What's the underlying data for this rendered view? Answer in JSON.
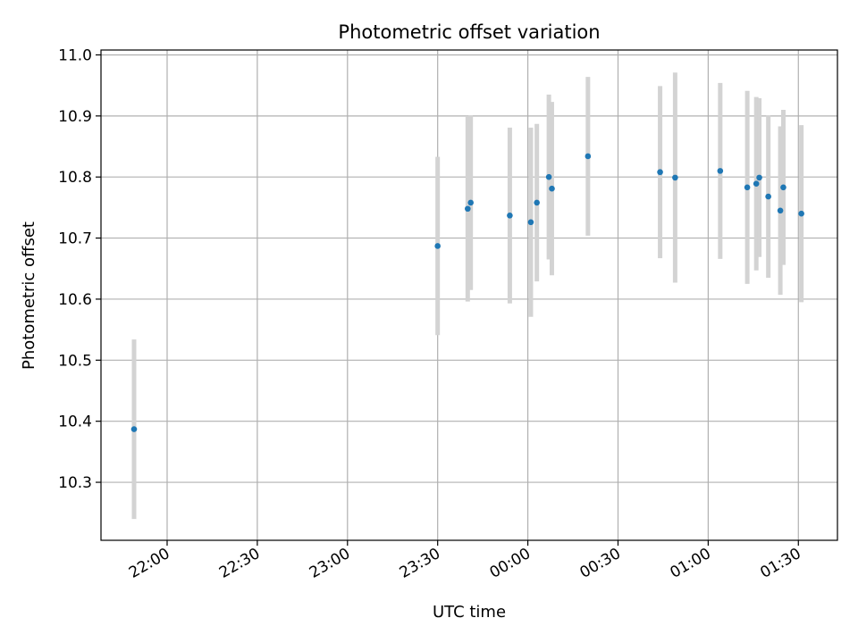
{
  "chart_data": {
    "type": "scatter",
    "title": "Photometric offset variation",
    "xlabel": "UTC time",
    "ylabel": "Photometric offset",
    "x_axis": {
      "ticks": [
        "21:30",
        "22:00",
        "22:30",
        "23:00",
        "23:30",
        "00:00",
        "00:30",
        "01:00",
        "01:30"
      ],
      "tick_labels": [
        "",
        "22:00",
        "22:30",
        "23:00",
        "23:30",
        "00:00",
        "00:30",
        "01:00",
        "01:30"
      ],
      "range": [
        "21:38",
        "01:43"
      ]
    },
    "y_axis": {
      "ticks": [
        10.3,
        10.4,
        10.5,
        10.6,
        10.7,
        10.8,
        10.9,
        11.0
      ],
      "tick_labels": [
        "10.3",
        "10.4",
        "10.5",
        "10.6",
        "10.7",
        "10.8",
        "10.9",
        "11.0"
      ],
      "range": [
        10.205,
        11.008
      ]
    },
    "grid": true,
    "series": [
      {
        "color": "#1f77b4",
        "errorbar_color": "#d3d3d3",
        "points": [
          {
            "x": "21:49",
            "y": 10.387,
            "err": 0.147
          },
          {
            "x": "23:30",
            "y": 10.687,
            "err": 0.146
          },
          {
            "x": "23:40",
            "y": 10.748,
            "err": 0.152
          },
          {
            "x": "23:41",
            "y": 10.758,
            "err": 0.143
          },
          {
            "x": "23:54",
            "y": 10.737,
            "err": 0.144
          },
          {
            "x": "00:01",
            "y": 10.726,
            "err": 0.155
          },
          {
            "x": "00:03",
            "y": 10.758,
            "err": 0.129
          },
          {
            "x": "00:07",
            "y": 10.8,
            "err": 0.135
          },
          {
            "x": "00:08",
            "y": 10.781,
            "err": 0.142
          },
          {
            "x": "00:20",
            "y": 10.834,
            "err": 0.13
          },
          {
            "x": "00:44",
            "y": 10.808,
            "err": 0.141
          },
          {
            "x": "00:49",
            "y": 10.799,
            "err": 0.172
          },
          {
            "x": "01:04",
            "y": 10.81,
            "err": 0.144
          },
          {
            "x": "01:13",
            "y": 10.783,
            "err": 0.158
          },
          {
            "x": "01:16",
            "y": 10.789,
            "err": 0.142
          },
          {
            "x": "01:17",
            "y": 10.799,
            "err": 0.13
          },
          {
            "x": "01:20",
            "y": 10.768,
            "err": 0.133
          },
          {
            "x": "01:24",
            "y": 10.745,
            "err": 0.138
          },
          {
            "x": "01:25",
            "y": 10.783,
            "err": 0.127
          },
          {
            "x": "01:31",
            "y": 10.74,
            "err": 0.145
          }
        ]
      }
    ]
  }
}
